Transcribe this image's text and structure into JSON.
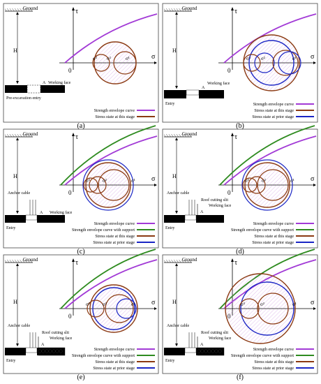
{
  "colors": {
    "envelope": "#a23ad6",
    "support_envelope": "#2e8b1f",
    "this_stage": "#8b3a12",
    "prior_stage": "#1a25c4",
    "hatch": "#c27ad9",
    "rock": "#000000",
    "border": "#444444"
  },
  "text": {
    "ground": "Ground",
    "H": "H",
    "A": "A",
    "working_face": "Working face",
    "entry": "Entry",
    "pre_excavation_entry": "Pre-excavation entry",
    "anchor_cable": "Anchor cable",
    "roof_cutting_slit": "Roof cutting slit",
    "tau": "τ",
    "sigma": "σ",
    "origin": "0",
    "s1": "σ¹",
    "s2": "σ²",
    "s3": "σ³"
  },
  "legend": {
    "envelope": "Strength envelope curve",
    "support_envelope": "Strength envelope curve with support",
    "this_stage": "Stress state at this stage",
    "prior_stage": "Stress state at prior stage"
  },
  "panels": [
    {
      "label": "(a)",
      "legend": [
        "envelope",
        "this_stage"
      ]
    },
    {
      "label": "(b)",
      "legend": [
        "envelope",
        "this_stage",
        "prior_stage"
      ]
    },
    {
      "label": "(c)",
      "legend": [
        "envelope",
        "support_envelope",
        "this_stage",
        "prior_stage"
      ]
    },
    {
      "label": "(d)",
      "legend": [
        "envelope",
        "support_envelope",
        "this_stage",
        "prior_stage"
      ]
    },
    {
      "label": "(e)",
      "legend": [
        "envelope",
        "support_envelope",
        "this_stage",
        "prior_stage"
      ]
    },
    {
      "label": "(f)",
      "legend": [
        "envelope",
        "support_envelope",
        "this_stage",
        "prior_stage"
      ]
    }
  ]
}
